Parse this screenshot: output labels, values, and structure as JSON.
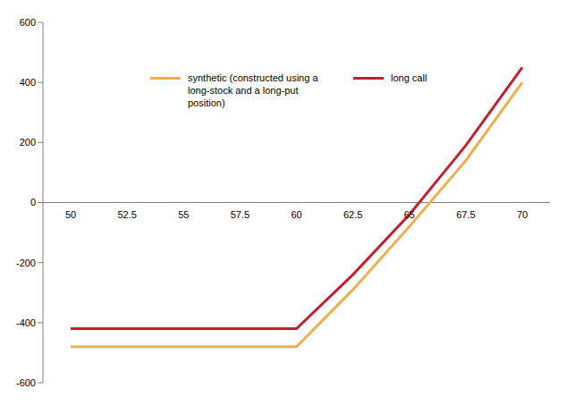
{
  "chart_data": {
    "type": "line",
    "categories": [
      "50",
      "52.5",
      "55",
      "57.5",
      "60",
      "62.5",
      "65",
      "67.5",
      "70"
    ],
    "series": [
      {
        "name": "synthetic (constructed using a long-stock and a long-put position)",
        "color": "#EBB04A",
        "values": [
          -480,
          -480,
          -480,
          -480,
          -480,
          -290,
          -80,
          140,
          400
        ]
      },
      {
        "name": "long call",
        "color": "#C0202F",
        "values": [
          -420,
          -420,
          -420,
          -420,
          -420,
          -240,
          -40,
          190,
          450
        ]
      }
    ],
    "ylim": [
      -600,
      600
    ],
    "yticks": [
      -600,
      -400,
      -200,
      0,
      200,
      400,
      600
    ],
    "legend": "top",
    "grid": false
  }
}
